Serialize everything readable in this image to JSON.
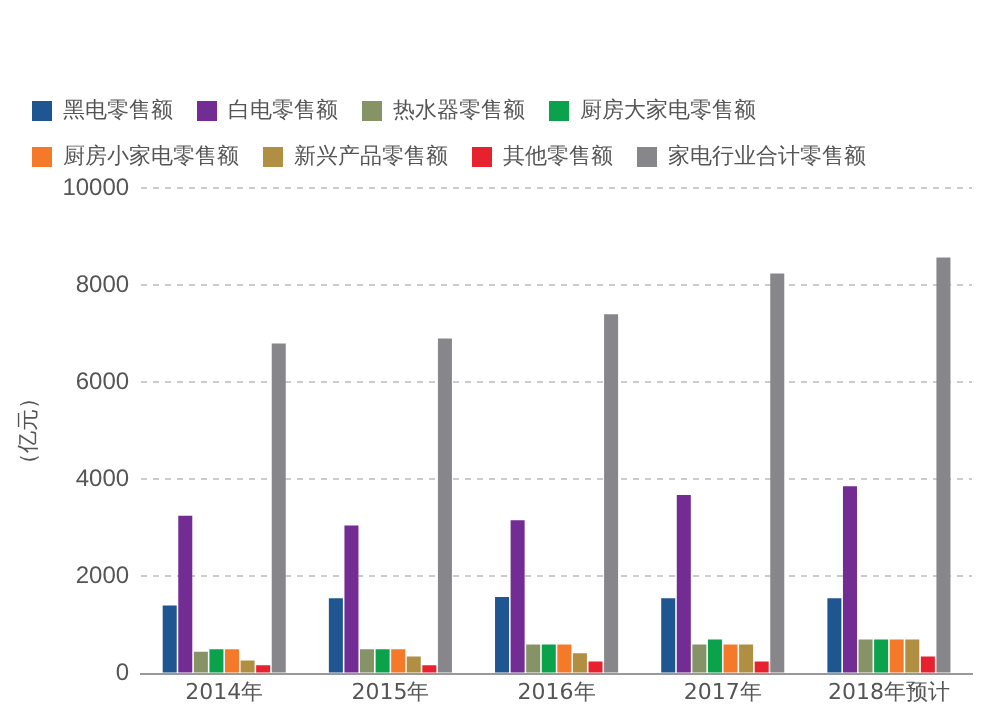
{
  "chart_data": {
    "type": "bar",
    "ylabel": "（亿元）",
    "categories": [
      "2014年",
      "2015年",
      "2016年",
      "2017年",
      "2018年预计"
    ],
    "series": [
      {
        "name": "黑电零售额",
        "color": "#1f5591",
        "values": [
          1400,
          1550,
          1580,
          1550,
          1550
        ]
      },
      {
        "name": "白电零售额",
        "color": "#722c93",
        "values": [
          3250,
          3050,
          3160,
          3680,
          3860
        ]
      },
      {
        "name": "热水器零售额",
        "color": "#869366",
        "values": [
          450,
          500,
          600,
          600,
          700
        ]
      },
      {
        "name": "厨房大家电零售额",
        "color": "#0ba24c",
        "values": [
          500,
          500,
          600,
          700,
          700
        ]
      },
      {
        "name": "厨房小家电零售额",
        "color": "#f47a2a",
        "values": [
          500,
          500,
          600,
          600,
          700
        ]
      },
      {
        "name": "新兴产品零售额",
        "color": "#b08f42",
        "values": [
          270,
          350,
          420,
          600,
          700
        ]
      },
      {
        "name": "其他零售额",
        "color": "#e8212f",
        "values": [
          170,
          170,
          250,
          250,
          350
        ]
      },
      {
        "name": "家电行业合计零售额",
        "color": "#87878b",
        "values": [
          6800,
          6900,
          7400,
          8240,
          8570
        ]
      }
    ],
    "ylim": [
      0,
      10000
    ],
    "yticks": [
      0,
      2000,
      4000,
      6000,
      8000,
      10000
    ],
    "grid": "y",
    "legend": "top"
  }
}
